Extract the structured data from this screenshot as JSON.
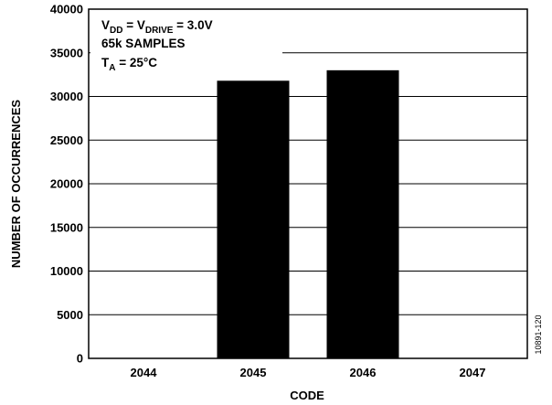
{
  "chart_data": {
    "type": "bar",
    "categories": [
      "2044",
      "2045",
      "2046",
      "2047"
    ],
    "values": [
      0,
      31800,
      33000,
      0
    ],
    "xlabel": "CODE",
    "ylabel": "NUMBER OF OCCURRENCES",
    "ylim": [
      0,
      40000
    ],
    "yticks": [
      "0",
      "5000",
      "10000",
      "15000",
      "20000",
      "25000",
      "30000",
      "35000",
      "40000"
    ],
    "ytick_values": [
      0,
      5000,
      10000,
      15000,
      20000,
      25000,
      30000,
      35000,
      40000
    ],
    "grid": true,
    "bar_color": "#000000",
    "annotation": {
      "v": "V",
      "dd_sub": "DD",
      "eq_v": " = V",
      "drive_sub": "DRIVE",
      "drive_value": " = 3.0V",
      "samples": "65k SAMPLES",
      "t": "T",
      "a_sub": "A",
      "temp_value": " = 25°C"
    },
    "figure_id": "10891-120"
  }
}
